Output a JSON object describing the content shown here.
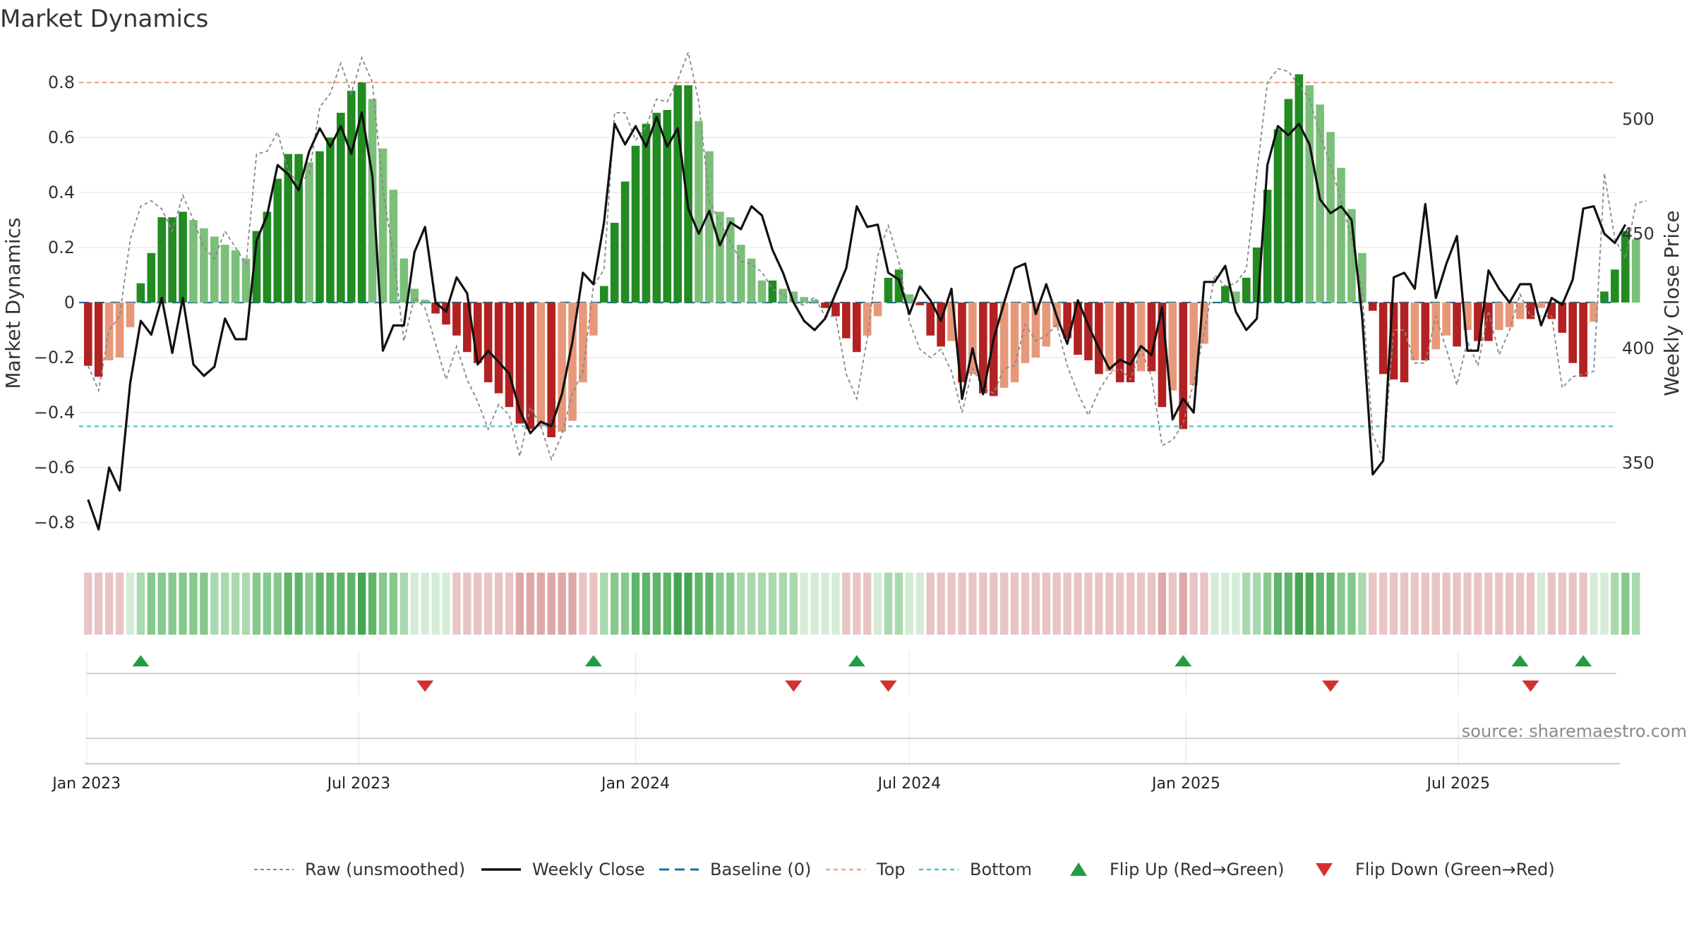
{
  "title": "Market Dynamics",
  "source": "source: sharemaestro.com",
  "colors": {
    "pos_strong": "#228b22",
    "pos_weak": "#7cbf7a",
    "neg_strong": "#b22222",
    "neg_weak": "#e8987a",
    "top_line": "#f4a582",
    "bottom_line": "#4fc3c8",
    "baseline": "#1f6f9f",
    "raw": "#888888",
    "close": "#111111",
    "flip_up": "#239b45",
    "flip_down": "#d43030"
  },
  "legend": [
    {
      "label": "Raw (unsmoothed)",
      "kind": "raw"
    },
    {
      "label": "Weekly Close",
      "kind": "close"
    },
    {
      "label": "Baseline (0)",
      "kind": "baseline"
    },
    {
      "label": "Top",
      "kind": "top"
    },
    {
      "label": "Bottom",
      "kind": "bottom"
    },
    {
      "label": "Flip Up (Red→Green)",
      "kind": "up"
    },
    {
      "label": "Flip Down (Green→Red)",
      "kind": "down"
    }
  ],
  "chart_data": {
    "type": "bar",
    "ylabel": "Market Dynamics",
    "y2label": "Weekly Close Price",
    "ylim": [
      -0.9,
      0.9
    ],
    "yticks": [
      0.8,
      0.6,
      0.4,
      0.2,
      0,
      -0.2,
      -0.4,
      -0.6,
      -0.8
    ],
    "ytick_labels": [
      "0.8",
      "0.6",
      "0.4",
      "0.2",
      "0",
      "−0.2",
      "−0.4",
      "−0.6",
      "−0.8"
    ],
    "y2lim": [
      312,
      528
    ],
    "y2ticks": [
      500,
      450,
      400,
      350
    ],
    "top": 0.8,
    "bottom": -0.45,
    "baseline": 0,
    "x_start": "2023-01-02",
    "x_step_days": 7,
    "x_ticks": [
      {
        "label": "Jan 2023",
        "date": "2023-01-01"
      },
      {
        "label": "Jul 2023",
        "date": "2023-07-01"
      },
      {
        "label": "Jan 2024",
        "date": "2024-01-01"
      },
      {
        "label": "Jul 2024",
        "date": "2024-07-01"
      },
      {
        "label": "Jan 2025",
        "date": "2025-01-01"
      },
      {
        "label": "Jul 2025",
        "date": "2025-07-01"
      }
    ],
    "x_range": [
      "2022-12-27",
      "2025-10-14"
    ],
    "series": [
      {
        "name": "Market Dynamics",
        "values": [
          -0.23,
          -0.27,
          -0.21,
          -0.2,
          -0.09,
          0.07,
          0.18,
          0.31,
          0.31,
          0.33,
          0.3,
          0.27,
          0.24,
          0.21,
          0.19,
          0.16,
          0.26,
          0.33,
          0.45,
          0.54,
          0.54,
          0.51,
          0.55,
          0.6,
          0.69,
          0.77,
          0.8,
          0.74,
          0.56,
          0.41,
          0.16,
          0.05,
          0.01,
          -0.04,
          -0.08,
          -0.12,
          -0.18,
          -0.22,
          -0.29,
          -0.33,
          -0.38,
          -0.44,
          -0.46,
          -0.45,
          -0.49,
          -0.47,
          -0.43,
          -0.29,
          -0.12,
          0.06,
          0.29,
          0.44,
          0.57,
          0.65,
          0.69,
          0.7,
          0.79,
          0.79,
          0.66,
          0.55,
          0.33,
          0.31,
          0.21,
          0.16,
          0.08,
          0.08,
          0.05,
          0.04,
          0.02,
          0.01,
          -0.02,
          -0.05,
          -0.13,
          -0.18,
          -0.12,
          -0.05,
          0.09,
          0.12,
          0.03,
          -0.01,
          -0.12,
          -0.16,
          -0.14,
          -0.29,
          -0.26,
          -0.33,
          -0.34,
          -0.31,
          -0.29,
          -0.22,
          -0.2,
          -0.16,
          -0.09,
          -0.13,
          -0.19,
          -0.21,
          -0.26,
          -0.25,
          -0.29,
          -0.29,
          -0.25,
          -0.25,
          -0.38,
          -0.32,
          -0.46,
          -0.3,
          -0.15,
          0.0,
          0.06,
          0.04,
          0.09,
          0.2,
          0.41,
          0.63,
          0.74,
          0.83,
          0.79,
          0.72,
          0.62,
          0.49,
          0.34,
          0.18,
          -0.03,
          -0.26,
          -0.28,
          -0.29,
          -0.21,
          -0.21,
          -0.17,
          -0.12,
          -0.16,
          -0.1,
          -0.14,
          -0.14,
          -0.1,
          -0.09,
          -0.06,
          -0.06,
          -0.02,
          -0.06,
          -0.11,
          -0.22,
          -0.27,
          -0.07,
          0.04,
          0.12,
          0.26,
          0.23
        ]
      },
      {
        "name": "Raw (unsmoothed)",
        "values": [
          -0.23,
          -0.32,
          -0.1,
          -0.05,
          0.23,
          0.35,
          0.37,
          0.34,
          0.26,
          0.39,
          0.3,
          0.2,
          0.16,
          0.26,
          0.2,
          0.14,
          0.54,
          0.55,
          0.62,
          0.48,
          0.43,
          0.47,
          0.71,
          0.76,
          0.87,
          0.76,
          0.89,
          0.8,
          0.41,
          0.17,
          -0.14,
          0.02,
          -0.02,
          -0.15,
          -0.28,
          -0.16,
          -0.28,
          -0.36,
          -0.46,
          -0.37,
          -0.41,
          -0.56,
          -0.38,
          -0.45,
          -0.57,
          -0.48,
          -0.33,
          -0.25,
          0.06,
          0.12,
          0.69,
          0.69,
          0.59,
          0.64,
          0.74,
          0.73,
          0.81,
          0.91,
          0.73,
          0.37,
          0.29,
          0.22,
          0.15,
          0.14,
          0.11,
          0.05,
          0.03,
          0.0,
          -0.01,
          0.02,
          -0.05,
          -0.05,
          -0.26,
          -0.35,
          -0.13,
          0.17,
          0.28,
          0.15,
          -0.07,
          -0.17,
          -0.2,
          -0.17,
          -0.25,
          -0.4,
          -0.24,
          -0.31,
          -0.33,
          -0.24,
          -0.23,
          -0.08,
          -0.14,
          -0.12,
          -0.08,
          -0.23,
          -0.33,
          -0.41,
          -0.32,
          -0.26,
          -0.24,
          -0.28,
          -0.17,
          -0.27,
          -0.52,
          -0.5,
          -0.44,
          -0.29,
          -0.11,
          0.1,
          0.06,
          0.07,
          0.12,
          0.47,
          0.8,
          0.85,
          0.84,
          0.79,
          0.74,
          0.61,
          0.5,
          0.37,
          0.23,
          0.04,
          -0.48,
          -0.57,
          -0.1,
          -0.1,
          -0.22,
          -0.22,
          -0.05,
          -0.17,
          -0.3,
          -0.14,
          -0.23,
          -0.03,
          -0.19,
          -0.1,
          0.03,
          -0.05,
          -0.05,
          -0.05,
          -0.31,
          -0.27,
          -0.26,
          -0.25,
          0.47,
          0.23,
          0.16,
          0.36,
          0.37
        ]
      },
      {
        "name": "Weekly Close",
        "values": [
          334,
          321,
          348,
          338,
          385,
          412,
          406,
          422,
          398,
          422,
          393,
          388,
          392,
          413,
          404,
          404,
          447,
          458,
          480,
          476,
          469,
          486,
          496,
          488,
          497,
          485,
          503,
          475,
          399,
          410,
          410,
          442,
          453,
          420,
          416,
          431,
          424,
          393,
          399,
          394,
          389,
          373,
          363,
          368,
          366,
          380,
          403,
          433,
          428,
          455,
          498,
          489,
          497,
          488,
          501,
          488,
          496,
          461,
          450,
          460,
          445,
          455,
          452,
          462,
          458,
          443,
          433,
          420,
          412,
          408,
          413,
          424,
          435,
          462,
          453,
          454,
          433,
          430,
          415,
          427,
          421,
          412,
          426,
          378,
          400,
          380,
          404,
          420,
          435,
          437,
          415,
          428,
          414,
          402,
          421,
          410,
          400,
          391,
          395,
          393,
          401,
          397,
          418,
          369,
          378,
          372,
          429,
          429,
          436,
          416,
          408,
          413,
          480,
          497,
          493,
          498,
          489,
          465,
          459,
          462,
          456,
          414,
          345,
          351,
          431,
          433,
          426,
          463,
          422,
          437,
          449,
          399,
          399,
          434,
          426,
          420,
          428,
          428,
          410,
          422,
          419,
          430,
          461,
          462,
          450,
          446,
          454
        ]
      }
    ],
    "regime_levels": [
      -1,
      -1,
      -1,
      -1,
      0,
      1,
      2,
      2,
      2,
      2,
      2,
      2,
      1,
      1,
      1,
      1,
      2,
      2,
      2,
      3,
      3,
      2,
      3,
      3,
      3,
      3,
      4,
      3,
      2,
      2,
      1,
      0,
      0,
      0,
      0,
      -1,
      -1,
      -1,
      -1,
      -1,
      -1,
      -2,
      -2,
      -2,
      -2,
      -2,
      -2,
      -1,
      -1,
      1,
      2,
      2,
      3,
      3,
      3,
      3,
      4,
      4,
      3,
      3,
      2,
      2,
      1,
      1,
      1,
      1,
      1,
      1,
      0,
      0,
      0,
      0,
      -1,
      -1,
      -1,
      0,
      1,
      1,
      0,
      0,
      -1,
      -1,
      -1,
      -1,
      -1,
      -1,
      -1,
      -1,
      -1,
      -1,
      -1,
      -1,
      -1,
      -1,
      -1,
      -1,
      -1,
      -1,
      -1,
      -1,
      -1,
      -1,
      -2,
      -1,
      -2,
      -1,
      -1,
      0,
      0,
      0,
      1,
      1,
      2,
      3,
      3,
      4,
      4,
      3,
      3,
      2,
      2,
      1,
      -1,
      -1,
      -1,
      -1,
      -1,
      -1,
      -1,
      -1,
      -1,
      -1,
      -1,
      -1,
      -1,
      -1,
      -1,
      -1,
      0,
      -1,
      -1,
      -1,
      -1,
      0,
      0,
      1,
      2,
      1
    ],
    "flip_up": [
      "2023-02-06",
      "2023-12-04",
      "2024-05-27",
      "2024-12-30",
      "2025-08-11",
      "2025-09-22"
    ],
    "flip_down": [
      "2023-08-14",
      "2024-04-15",
      "2024-06-17",
      "2025-04-07",
      "2025-08-18"
    ]
  }
}
